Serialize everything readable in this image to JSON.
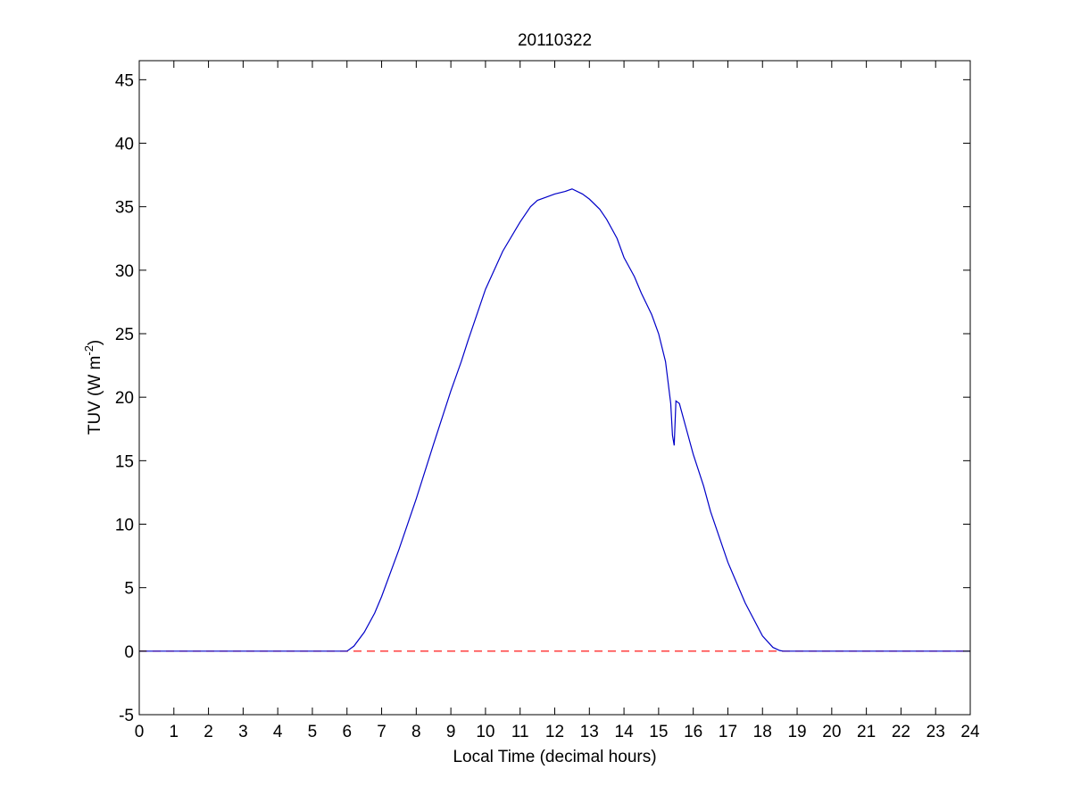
{
  "chart_data": {
    "type": "line",
    "title": "20110322",
    "xlabel": "Local Time (decimal hours)",
    "ylabel": "TUV (W m",
    "ylabel_superscript": "-2",
    "ylabel_suffix": ")",
    "xlim": [
      0,
      24
    ],
    "ylim": [
      -5,
      46.5
    ],
    "xticks": [
      "0",
      "1",
      "2",
      "3",
      "4",
      "5",
      "6",
      "7",
      "8",
      "9",
      "10",
      "11",
      "12",
      "13",
      "14",
      "15",
      "16",
      "17",
      "18",
      "19",
      "20",
      "21",
      "22",
      "23",
      "24"
    ],
    "yticks": [
      "-5",
      "0",
      "5",
      "10",
      "15",
      "20",
      "25",
      "30",
      "35",
      "40",
      "45"
    ],
    "grid": false,
    "series": [
      {
        "color": "#0000c8",
        "style": "solid",
        "x": [
          0,
          6.0,
          6.2,
          6.5,
          6.8,
          7.0,
          7.5,
          8.0,
          8.5,
          9.0,
          9.3,
          9.5,
          10.0,
          10.5,
          11.0,
          11.3,
          11.5,
          11.8,
          12.0,
          12.3,
          12.5,
          12.8,
          13.0,
          13.3,
          13.5,
          13.8,
          14.0,
          14.3,
          14.5,
          14.8,
          15.0,
          15.2,
          15.35,
          15.4,
          15.45,
          15.5,
          15.6,
          15.8,
          16.0,
          16.3,
          16.5,
          17.0,
          17.5,
          18.0,
          18.3,
          18.5,
          18.6,
          24
        ],
        "y": [
          0,
          0,
          0.4,
          1.5,
          3.0,
          4.3,
          8.0,
          12.0,
          16.3,
          20.5,
          22.8,
          24.5,
          28.5,
          31.5,
          33.8,
          35.0,
          35.5,
          35.8,
          36.0,
          36.2,
          36.4,
          36.0,
          35.6,
          34.8,
          34.0,
          32.5,
          31.0,
          29.5,
          28.2,
          26.5,
          25.0,
          22.8,
          19.5,
          17.0,
          16.2,
          19.7,
          19.5,
          17.5,
          15.5,
          13.0,
          11.0,
          7.0,
          3.8,
          1.2,
          0.3,
          0.05,
          0,
          0
        ]
      },
      {
        "color": "#ff0000",
        "style": "dashed",
        "x": [
          0,
          24
        ],
        "y": [
          0,
          0
        ]
      }
    ]
  }
}
